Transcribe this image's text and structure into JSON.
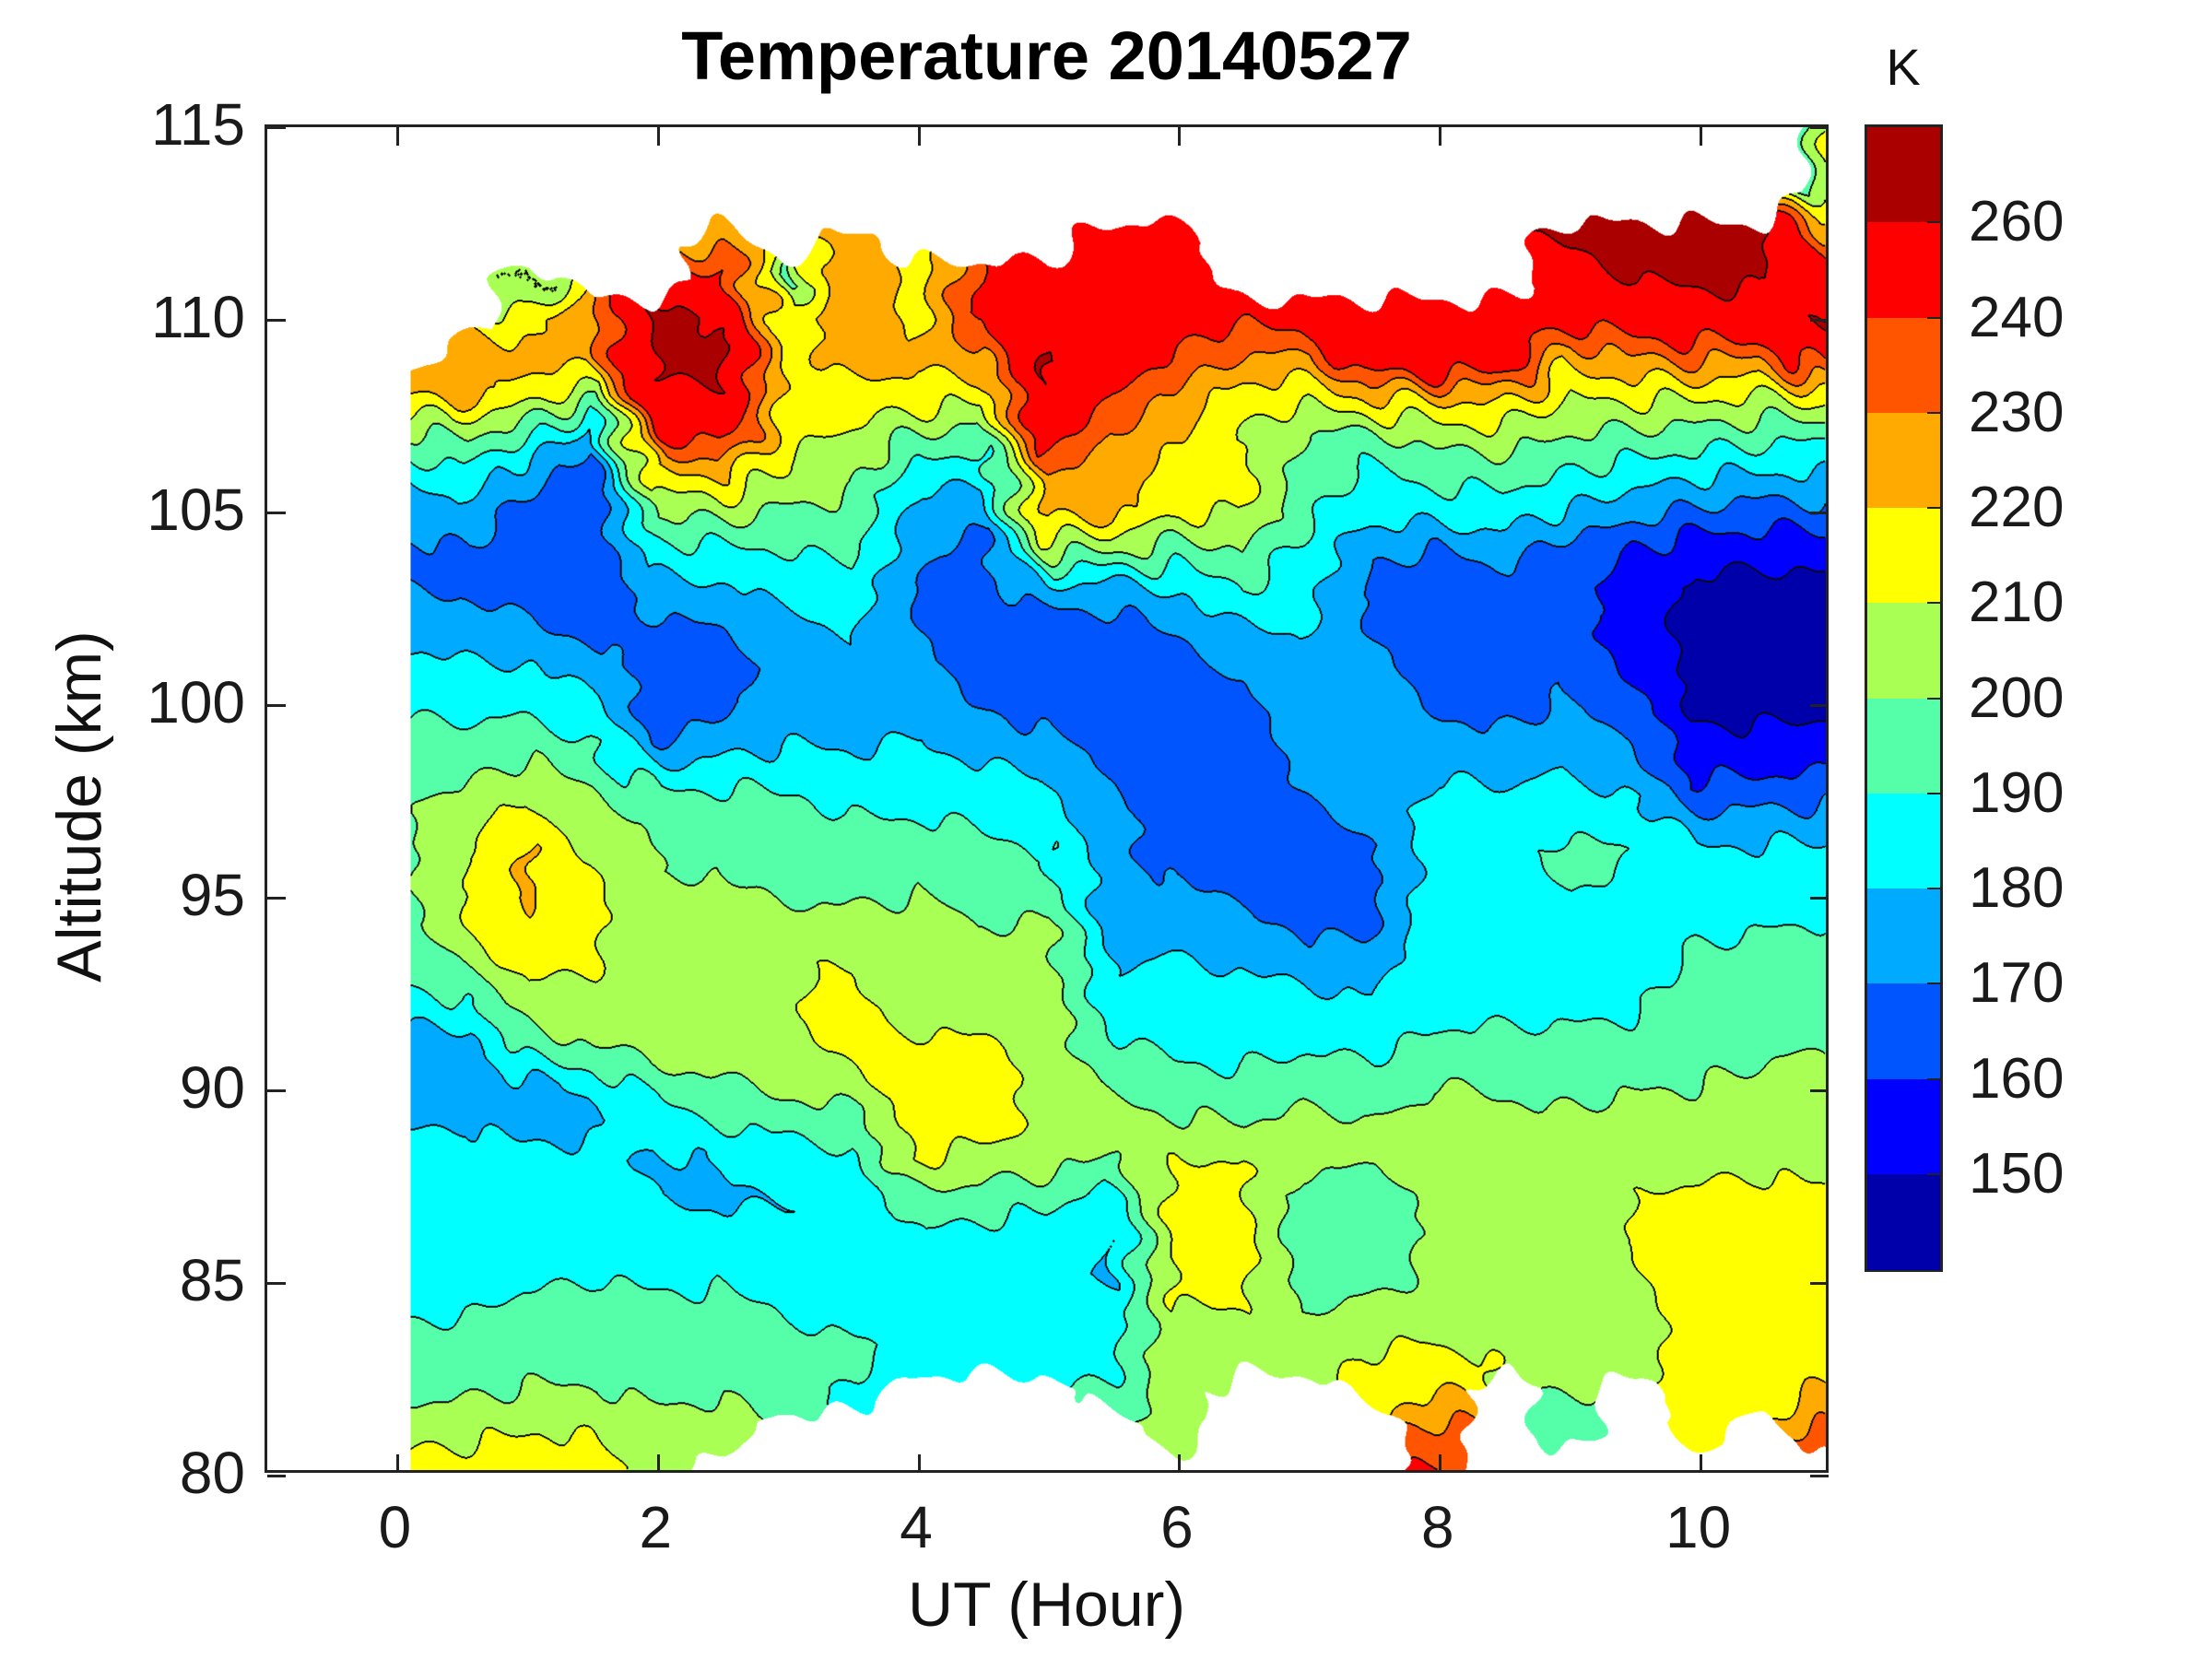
{
  "title": "Temperature 20140527",
  "axes": {
    "xlabel": "UT (Hour)",
    "ylabel": "Altitude (km)",
    "xlim": [
      -1,
      11
    ],
    "ylim": [
      80,
      115
    ],
    "xticks": [
      0,
      2,
      4,
      6,
      8,
      10
    ],
    "yticks": [
      80,
      85,
      90,
      95,
      100,
      105,
      110,
      115
    ],
    "grid": "off",
    "tick_direction": "in"
  },
  "colorbar": {
    "title": "K",
    "labels_top_to_bottom": [
      "260",
      "240",
      "230",
      "220",
      "210",
      "200",
      "190",
      "180",
      "170",
      "160",
      "150"
    ],
    "segments": 12
  },
  "chart_data": {
    "type": "heatmap",
    "subtype": "filled_contour",
    "title": "Temperature 20140527",
    "xlabel": "UT (Hour)",
    "ylabel": "Altitude (km)",
    "units": "K",
    "xlim": [
      -1,
      11
    ],
    "ylim": [
      80,
      115
    ],
    "levels": [
      150,
      160,
      170,
      180,
      190,
      200,
      210,
      220,
      230,
      240,
      260
    ],
    "palette": [
      "#0000AA",
      "#0000FF",
      "#0055FF",
      "#00AAFF",
      "#00FFFF",
      "#55FFAA",
      "#AAFF55",
      "#FFFF00",
      "#FFAA00",
      "#FF5500",
      "#FF0000",
      "#AA0000"
    ],
    "nan_color": "#FFFFFF",
    "contour_line_color": "#000000",
    "x_start": 0,
    "x_step": 0.5,
    "y_start": 80,
    "y_step": 1,
    "x_data_min": 0.1,
    "x_data_max": 11,
    "grid_note": "columns = hours 0..11 step 0.5; each column = temperature K at altitudes 80..113 km step 1; null = no data (white)",
    "grid": [
      [
        214,
        206,
        198,
        193,
        189,
        185,
        184,
        184,
        183,
        179,
        175,
        176,
        183,
        192,
        196,
        196,
        196,
        199,
        196,
        193,
        188,
        183,
        177,
        170,
        168,
        174,
        183,
        197,
        219,
        null,
        null,
        null,
        null,
        null
      ],
      [
        215,
        207,
        199,
        194,
        190,
        186,
        184,
        184,
        183,
        180,
        175,
        174,
        186,
        200,
        208,
        210,
        209,
        206,
        199,
        193,
        187,
        181,
        174,
        169,
        170,
        177,
        187,
        203,
        224,
        227,
        null,
        null,
        null,
        null
      ],
      [
        216,
        210,
        201,
        196,
        194,
        188,
        185,
        184,
        183,
        177,
        177,
        194,
        203,
        212,
        218,
        222,
        221,
        215,
        204,
        195,
        187,
        180,
        171,
        166,
        165,
        167,
        175,
        192,
        214,
        224,
        212,
        200,
        null,
        null
      ],
      [
        215,
        209,
        201,
        197,
        195,
        190,
        186,
        185,
        183,
        178,
        182,
        200,
        206,
        210,
        212,
        212,
        210,
        204,
        197,
        190,
        183,
        174,
        167,
        163,
        162,
        162,
        164,
        175,
        205,
        224,
        230,
        null,
        null,
        null
      ],
      [
        206,
        204,
        198,
        195,
        193,
        188,
        185,
        180,
        177,
        185,
        194,
        203,
        206,
        205,
        202,
        200,
        200,
        198,
        186,
        169,
        164,
        164,
        168,
        176,
        186,
        202,
        220,
        242,
        258,
        263,
        262,
        null,
        null,
        null
      ],
      [
        null,
        206,
        199,
        196,
        193,
        189,
        184,
        179,
        181,
        190,
        199,
        206,
        208,
        210,
        206,
        201,
        199,
        196,
        188,
        175,
        168,
        166,
        171,
        179,
        189,
        204,
        221,
        244,
        259,
        262,
        258,
        246,
        226,
        null
      ],
      [
        null,
        null,
        193,
        195,
        190,
        186,
        183,
        180,
        184,
        193,
        202,
        208,
        209,
        209,
        204,
        199,
        197,
        194,
        188,
        179,
        174,
        174,
        178,
        184,
        190,
        199,
        208,
        214,
        216,
        215,
        214,
        196,
        null,
        null
      ],
      [
        null,
        null,
        188,
        192,
        187,
        184,
        182,
        181,
        187,
        196,
        205,
        211,
        213,
        211,
        205,
        198,
        194,
        190,
        185,
        178,
        175,
        176,
        181,
        187,
        193,
        198,
        202,
        208,
        216,
        225,
        228,
        230,
        226,
        null
      ],
      [
        null,
        null,
        null,
        187,
        186,
        185,
        188,
        196,
        210,
        216,
        216,
        213,
        205,
        202,
        202,
        200,
        196,
        190,
        184,
        181,
        177,
        172,
        170,
        170,
        172,
        176,
        186,
        200,
        216,
        222,
        216,
        214,
        null,
        null
      ],
      [
        null,
        null,
        null,
        186,
        185,
        184,
        187,
        193,
        206,
        214,
        215,
        212,
        204,
        201,
        200,
        198,
        194,
        188,
        182,
        176,
        169,
        165,
        164,
        164,
        167,
        173,
        182,
        196,
        214,
        228,
        244,
        240,
        null,
        null
      ],
      [
        null,
        null,
        null,
        186,
        185,
        184,
        185,
        192,
        204,
        208,
        207,
        206,
        206,
        206,
        202,
        196,
        191,
        185,
        181,
        172,
        165,
        164,
        164,
        178,
        204,
        224,
        230,
        246,
        260,
        262,
        254,
        246,
        null,
        null
      ],
      [
        null,
        null,
        192,
        187,
        186,
        178,
        180,
        184,
        197,
        205,
        199,
        192,
        185,
        180,
        177,
        174,
        173,
        172,
        168,
        165,
        164,
        164,
        166,
        176,
        202,
        224,
        224,
        230,
        240,
        250,
        255,
        256,
        252,
        null
      ],
      [
        null,
        204,
        206,
        207,
        209,
        213,
        214,
        214,
        212,
        202,
        194,
        188,
        184,
        182,
        177,
        171,
        167,
        165,
        164,
        164,
        164,
        166,
        172,
        182,
        196,
        212,
        216,
        222,
        228,
        238,
        248,
        252,
        246,
        null
      ],
      [
        null,
        null,
        null,
        205,
        209,
        213,
        214,
        213,
        210,
        200,
        193,
        187,
        183,
        180,
        175,
        169,
        166,
        164,
        163,
        164,
        166,
        172,
        180,
        190,
        200,
        210,
        214,
        210,
        214,
        230,
        242,
        null,
        null,
        null
      ],
      [
        null,
        null,
        null,
        204,
        200,
        195,
        193,
        194,
        203,
        204,
        196,
        189,
        184,
        178,
        168,
        165,
        165,
        169,
        173,
        175,
        175,
        176,
        181,
        184,
        187,
        193,
        196,
        200,
        214,
        228,
        244,
        null,
        null,
        null
      ],
      [
        null,
        null,
        213,
        210,
        206,
        195,
        193,
        194,
        200,
        201,
        194,
        188,
        182,
        176,
        170,
        166,
        169,
        172,
        174,
        175,
        176,
        174,
        170,
        168,
        172,
        184,
        188,
        198,
        222,
        252,
        256,
        null,
        null,
        null
      ],
      [
        240,
        233,
        220,
        212,
        207,
        204,
        202,
        203,
        204,
        204,
        200,
        193,
        187,
        190,
        188,
        186,
        185,
        184,
        180,
        174,
        168,
        164,
        164,
        165,
        170,
        185,
        193,
        205,
        222,
        255,
        250,
        null,
        null,
        null
      ],
      [
        null,
        null,
        null,
        209,
        206,
        203,
        201,
        202,
        204,
        203,
        199,
        193,
        188,
        190,
        189,
        187,
        186,
        184,
        179,
        172,
        166,
        164,
        164,
        166,
        174,
        186,
        194,
        206,
        224,
        250,
        252,
        null,
        null,
        null
      ],
      [
        null,
        198,
        200,
        203,
        205,
        204,
        205,
        205,
        205,
        202,
        197,
        193,
        188,
        186,
        187,
        190,
        193,
        187,
        181,
        176,
        171,
        166,
        164,
        164,
        166,
        180,
        190,
        200,
        211,
        222,
        244,
        258,
        260,
        null
      ],
      [
        null,
        null,
        null,
        206,
        208,
        209,
        210,
        210,
        208,
        204,
        199,
        194,
        189,
        186,
        186,
        188,
        190,
        184,
        177,
        170,
        163,
        158,
        155,
        155,
        160,
        174,
        186,
        198,
        212,
        230,
        248,
        260,
        262,
        null
      ],
      [
        null,
        212,
        213,
        213,
        213,
        214,
        214,
        212,
        208,
        204,
        200,
        198,
        194,
        192,
        189,
        186,
        182,
        172,
        160,
        152,
        148,
        147,
        147,
        148,
        155,
        168,
        182,
        196,
        212,
        232,
        252,
        262,
        263,
        null
      ],
      [
        null,
        null,
        214,
        215,
        215,
        215,
        214,
        212,
        209,
        205,
        201,
        199,
        196,
        193,
        190,
        187,
        183,
        173,
        161,
        152,
        147,
        146,
        146,
        147,
        153,
        166,
        180,
        194,
        210,
        230,
        252,
        262,
        263,
        null
      ],
      [
        null,
        232,
        222,
        216,
        215,
        214,
        213,
        211,
        208,
        205,
        202,
        200,
        198,
        194,
        191,
        188,
        184,
        174,
        162,
        153,
        148,
        147,
        147,
        148,
        154,
        167,
        180,
        192,
        215,
        250,
        262,
        248,
        228,
        216
      ]
    ]
  }
}
